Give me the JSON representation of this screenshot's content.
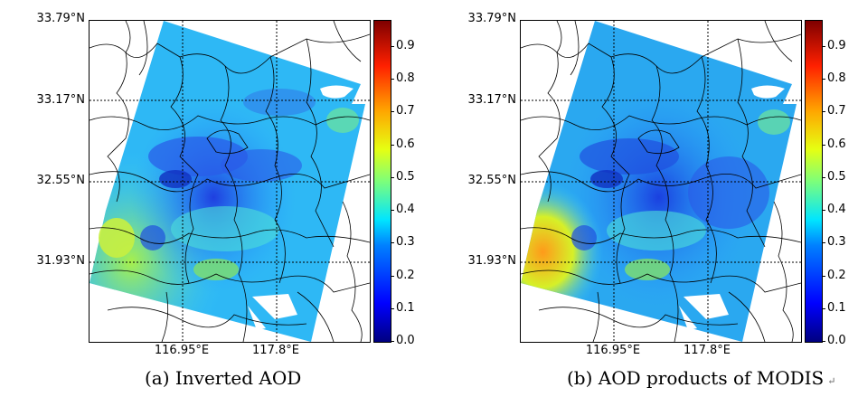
{
  "figure": {
    "panels": [
      {
        "caption": "(a) Inverted AOD",
        "return_mark": ""
      },
      {
        "caption": "(b) AOD products of MODIS",
        "return_mark": "↵"
      }
    ]
  },
  "lat_ticks": [
    "33.79°N",
    "33.17°N",
    "32.55°N",
    "31.93°N"
  ],
  "lon_ticks": [
    "116.95°E",
    "117.8°E"
  ],
  "colorbar": {
    "ticks": [
      "0.0",
      "0.1",
      "0.2",
      "0.3",
      "0.4",
      "0.5",
      "0.6",
      "0.7",
      "0.8",
      "0.9"
    ],
    "range": [
      0.0,
      0.98
    ],
    "colormap": "jet",
    "colors": [
      "#00007f",
      "#0000ff",
      "#0080ff",
      "#00e5ff",
      "#7dff7a",
      "#e6ff12",
      "#ffa500",
      "#ff2000",
      "#7f0000"
    ]
  }
}
